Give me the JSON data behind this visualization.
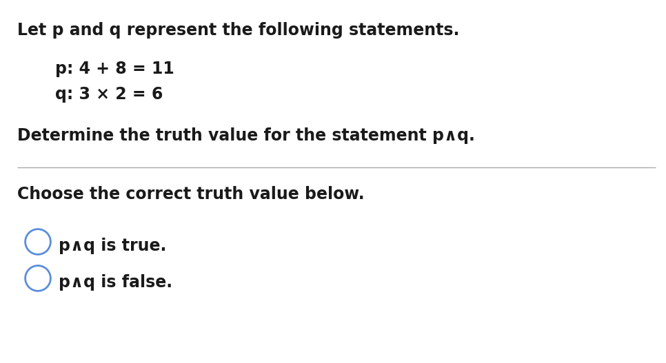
{
  "background_color": "#ffffff",
  "line1": "Let p and q represent the following statements.",
  "p_statement": "p: 4 + 8 = 11",
  "q_statement": "q: 3 × 2 = 6",
  "determine_text": "Determine the truth value for the statement p∧q.",
  "choose_text": "Choose the correct truth value below.",
  "option1": "p∧q is true.",
  "option2": "p∧q is false.",
  "circle_color": "#5b8dd9",
  "text_color": "#1a1a1a",
  "font_size_main": 17,
  "divider_color": "#aaaaaa",
  "fig_width": 9.66,
  "fig_height": 5.27,
  "dpi": 100
}
